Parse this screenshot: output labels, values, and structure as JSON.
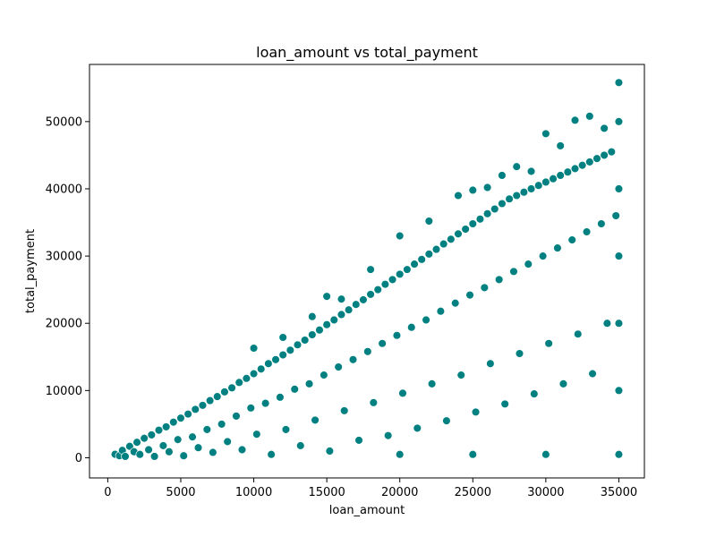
{
  "chart_data": {
    "type": "scatter",
    "title": "loan_amount vs total_payment",
    "xlabel": "loan_amount",
    "ylabel": "total_payment",
    "xlim": [
      -1250,
      36750
    ],
    "ylim": [
      -3000,
      58500
    ],
    "xticks": [
      0,
      5000,
      10000,
      15000,
      20000,
      25000,
      30000,
      35000
    ],
    "yticks": [
      0,
      10000,
      20000,
      30000,
      40000,
      50000
    ],
    "grid": false,
    "point_color": "#008080",
    "point_edge_color": "#ffffff",
    "series": [
      {
        "name": "",
        "points": [
          [
            500,
            520
          ],
          [
            800,
            300
          ],
          [
            1000,
            1100
          ],
          [
            1200,
            200
          ],
          [
            1500,
            1700
          ],
          [
            1800,
            900
          ],
          [
            2000,
            2300
          ],
          [
            2200,
            500
          ],
          [
            2500,
            2900
          ],
          [
            2800,
            1200
          ],
          [
            3000,
            3400
          ],
          [
            3200,
            200
          ],
          [
            3500,
            4100
          ],
          [
            3800,
            1800
          ],
          [
            4000,
            4600
          ],
          [
            4200,
            900
          ],
          [
            4500,
            5300
          ],
          [
            4800,
            2700
          ],
          [
            5000,
            5900
          ],
          [
            5200,
            300
          ],
          [
            5500,
            6500
          ],
          [
            5800,
            3100
          ],
          [
            6000,
            7200
          ],
          [
            6200,
            1500
          ],
          [
            6500,
            7800
          ],
          [
            6800,
            4200
          ],
          [
            7000,
            8500
          ],
          [
            7200,
            800
          ],
          [
            7500,
            9100
          ],
          [
            7800,
            5000
          ],
          [
            8000,
            9800
          ],
          [
            8200,
            2400
          ],
          [
            8500,
            10400
          ],
          [
            8800,
            6200
          ],
          [
            9000,
            11200
          ],
          [
            9200,
            1200
          ],
          [
            9500,
            11800
          ],
          [
            9800,
            7400
          ],
          [
            10000,
            12500
          ],
          [
            10000,
            16300
          ],
          [
            10200,
            3500
          ],
          [
            10500,
            13200
          ],
          [
            10800,
            8100
          ],
          [
            11000,
            14000
          ],
          [
            11200,
            500
          ],
          [
            11500,
            14600
          ],
          [
            11800,
            9000
          ],
          [
            12000,
            15300
          ],
          [
            12000,
            17900
          ],
          [
            12200,
            4200
          ],
          [
            12500,
            16000
          ],
          [
            12800,
            10200
          ],
          [
            13000,
            16800
          ],
          [
            13200,
            1800
          ],
          [
            13500,
            17500
          ],
          [
            13800,
            11000
          ],
          [
            14000,
            18300
          ],
          [
            14000,
            21000
          ],
          [
            14200,
            5600
          ],
          [
            14500,
            19000
          ],
          [
            14800,
            12300
          ],
          [
            15000,
            19800
          ],
          [
            15000,
            24000
          ],
          [
            15200,
            1000
          ],
          [
            15500,
            20500
          ],
          [
            15800,
            13500
          ],
          [
            16000,
            21300
          ],
          [
            16000,
            23600
          ],
          [
            16200,
            7000
          ],
          [
            16500,
            22000
          ],
          [
            16800,
            14600
          ],
          [
            17000,
            22800
          ],
          [
            17200,
            2600
          ],
          [
            17500,
            23500
          ],
          [
            17800,
            15800
          ],
          [
            18000,
            24300
          ],
          [
            18000,
            28000
          ],
          [
            18200,
            8200
          ],
          [
            18500,
            25000
          ],
          [
            18800,
            17000
          ],
          [
            19000,
            25800
          ],
          [
            19200,
            3300
          ],
          [
            19500,
            26500
          ],
          [
            19800,
            18200
          ],
          [
            20000,
            27300
          ],
          [
            20000,
            33000
          ],
          [
            20000,
            500
          ],
          [
            20200,
            9600
          ],
          [
            20500,
            28000
          ],
          [
            20800,
            19400
          ],
          [
            21000,
            28800
          ],
          [
            21200,
            4400
          ],
          [
            21500,
            29500
          ],
          [
            21800,
            20500
          ],
          [
            22000,
            30300
          ],
          [
            22000,
            35200
          ],
          [
            22200,
            11000
          ],
          [
            22500,
            31000
          ],
          [
            22800,
            21800
          ],
          [
            23000,
            31800
          ],
          [
            23200,
            5500
          ],
          [
            23500,
            32500
          ],
          [
            23800,
            23000
          ],
          [
            24000,
            33300
          ],
          [
            24000,
            39000
          ],
          [
            24200,
            12300
          ],
          [
            24500,
            34000
          ],
          [
            24800,
            24200
          ],
          [
            25000,
            34800
          ],
          [
            25000,
            39800
          ],
          [
            25000,
            500
          ],
          [
            25200,
            6800
          ],
          [
            25500,
            35500
          ],
          [
            25800,
            25300
          ],
          [
            26000,
            36300
          ],
          [
            26000,
            40200
          ],
          [
            26200,
            14000
          ],
          [
            26500,
            37000
          ],
          [
            26800,
            26500
          ],
          [
            27000,
            37800
          ],
          [
            27000,
            42000
          ],
          [
            27200,
            8000
          ],
          [
            27500,
            38500
          ],
          [
            27800,
            27700
          ],
          [
            28000,
            39000
          ],
          [
            28000,
            43300
          ],
          [
            28200,
            15500
          ],
          [
            28500,
            39500
          ],
          [
            28800,
            28800
          ],
          [
            29000,
            40000
          ],
          [
            29000,
            42600
          ],
          [
            29200,
            9500
          ],
          [
            29500,
            40500
          ],
          [
            29800,
            30000
          ],
          [
            30000,
            41000
          ],
          [
            30000,
            48200
          ],
          [
            30000,
            500
          ],
          [
            30200,
            17000
          ],
          [
            30500,
            41500
          ],
          [
            30800,
            31200
          ],
          [
            31000,
            42000
          ],
          [
            31000,
            46400
          ],
          [
            31200,
            11000
          ],
          [
            31500,
            42500
          ],
          [
            31800,
            32400
          ],
          [
            32000,
            43000
          ],
          [
            32000,
            50200
          ],
          [
            32200,
            18400
          ],
          [
            32500,
            43500
          ],
          [
            32800,
            33600
          ],
          [
            33000,
            44000
          ],
          [
            33000,
            50800
          ],
          [
            33200,
            12500
          ],
          [
            33500,
            44500
          ],
          [
            33800,
            34800
          ],
          [
            34000,
            45000
          ],
          [
            34000,
            49000
          ],
          [
            34200,
            20000
          ],
          [
            34500,
            45500
          ],
          [
            34800,
            36000
          ],
          [
            35000,
            55800
          ],
          [
            35000,
            500
          ],
          [
            35000,
            10000
          ],
          [
            35000,
            20000
          ],
          [
            35000,
            30000
          ],
          [
            35000,
            40000
          ],
          [
            35000,
            50000
          ]
        ]
      }
    ]
  }
}
